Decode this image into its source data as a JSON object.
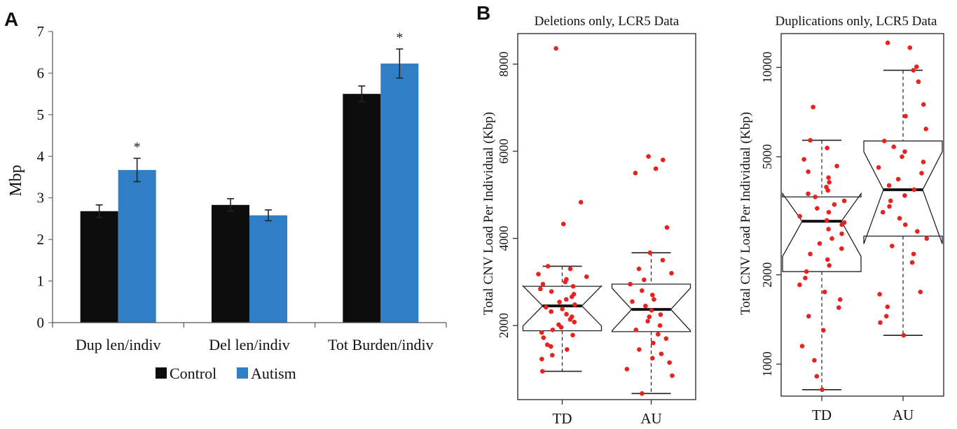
{
  "panels": {
    "a_label": "A",
    "b_label": "B"
  },
  "colors": {
    "control": "#0d0d0d",
    "autism": "#2f7fc7",
    "point": "#e8221e",
    "axis": "#555555"
  },
  "chart_data": [
    {
      "type": "bar",
      "panel": "A",
      "categories": [
        "Dup len/indiv",
        "Del len/indiv",
        "Tot Burden/indiv"
      ],
      "series": [
        {
          "name": "Control",
          "values": [
            2.68,
            2.83,
            5.5
          ],
          "errors": [
            0.15,
            0.15,
            0.19
          ]
        },
        {
          "name": "Autism",
          "values": [
            3.67,
            2.58,
            6.23
          ],
          "errors": [
            0.28,
            0.13,
            0.35
          ]
        }
      ],
      "ylabel": "Mbp",
      "ylim": [
        0,
        7
      ],
      "yticks": [
        "0",
        "1",
        "2",
        "3",
        "4",
        "5",
        "6",
        "7"
      ],
      "significance": [
        "*",
        "",
        "*"
      ],
      "legend": "bottom"
    },
    {
      "type": "box",
      "panel": "B",
      "title": "Deletions only, LCR5 Data",
      "ylabel": "Total CNV Load Per Individual (Kbp)",
      "yscale": "linear",
      "ylim": [
        300,
        8700
      ],
      "yticks": [
        2000,
        4000,
        6000,
        8000
      ],
      "categories": [
        "TD",
        "AU"
      ],
      "boxes": [
        {
          "whisker_low": 950,
          "q1": 1880,
          "median": 2450,
          "q3": 2900,
          "whisker_high": 3360
        },
        {
          "whisker_low": 440,
          "q1": 1860,
          "median": 2370,
          "q3": 2950,
          "whisker_high": 3670
        }
      ],
      "points": [
        [
          8360,
          4830,
          4330,
          3360,
          3300,
          3180,
          3120,
          3060,
          3000,
          2950,
          2900,
          2840,
          2780,
          2720,
          2660,
          2600,
          2540,
          2480,
          2420,
          2380,
          2320,
          2260,
          2200,
          2140,
          2080,
          2020,
          1960,
          1900,
          1840,
          1780,
          1720,
          1560,
          1520,
          1450,
          1320,
          1230,
          950
        ],
        [
          5880,
          5800,
          5600,
          5500,
          4250,
          3670,
          3500,
          3300,
          3200,
          3050,
          2950,
          2800,
          2700,
          2600,
          2550,
          2450,
          2350,
          2250,
          2200,
          2100,
          2000,
          1900,
          1800,
          1700,
          1600,
          1450,
          1350,
          1250,
          1150,
          1000,
          850,
          440
        ]
      ]
    },
    {
      "type": "box",
      "panel": "B",
      "title": "Duplications only, LCR5 Data",
      "ylabel": "Total CNV Load Per Individual (Kbp)",
      "yscale": "log",
      "ylim": [
        780,
        13000
      ],
      "yticks": [
        1000,
        2000,
        5000,
        10000
      ],
      "categories": [
        "TD",
        "AU"
      ],
      "boxes": [
        {
          "whisker_low": 820,
          "q1": 2050,
          "median": 3030,
          "q3": 3660,
          "whisker_high": 5680
        },
        {
          "whisker_low": 1250,
          "q1": 2700,
          "median": 3870,
          "q3": 5650,
          "whisker_high": 9780
        }
      ],
      "points": [
        [
          7350,
          5680,
          5350,
          4900,
          4650,
          4450,
          4250,
          4100,
          3950,
          3850,
          3750,
          3660,
          3550,
          3450,
          3350,
          3250,
          3150,
          3050,
          3000,
          2950,
          2850,
          2750,
          2650,
          2550,
          2450,
          2350,
          2250,
          2150,
          2050,
          1950,
          1850,
          1750,
          1650,
          1550,
          1450,
          1300,
          1150,
          1030,
          910,
          820
        ],
        [
          12100,
          11650,
          10050,
          9780,
          8950,
          7500,
          6850,
          6200,
          5650,
          5400,
          5200,
          5000,
          4800,
          4600,
          4400,
          4200,
          4000,
          3870,
          3700,
          3550,
          3400,
          3250,
          3100,
          2950,
          2800,
          2650,
          2500,
          2350,
          2200,
          1750,
          1720,
          1560,
          1450,
          1380,
          1250
        ]
      ]
    }
  ]
}
